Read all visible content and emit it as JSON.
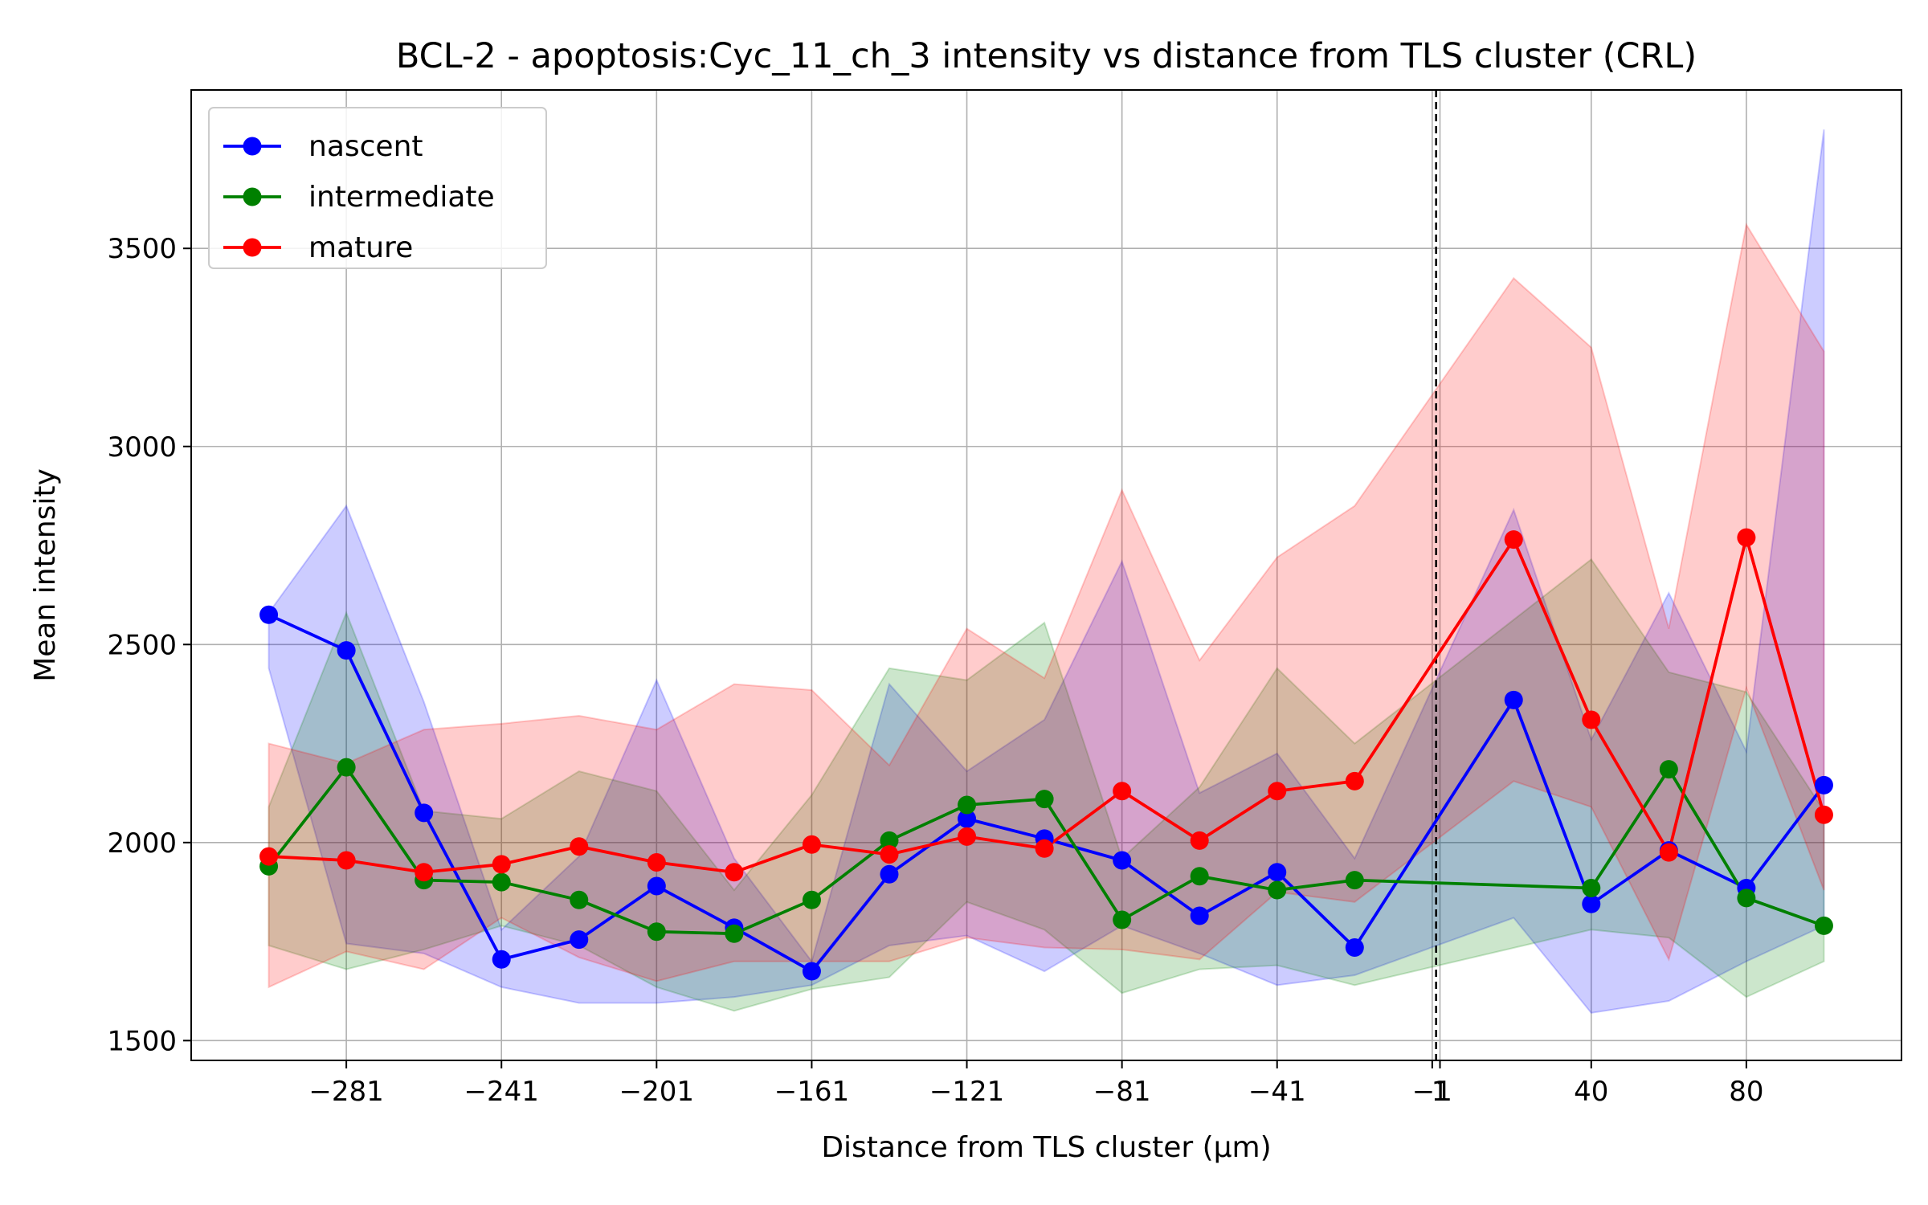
{
  "chart_data": {
    "type": "line",
    "title": "BCL-2 - apoptosis:Cyc_11_ch_3 intensity vs distance from TLS cluster (CRL)",
    "xlabel": "Distance from TLS cluster (μm)",
    "ylabel": "Mean intensity",
    "xlim": [
      -321,
      120
    ],
    "ylim": [
      1450,
      3900
    ],
    "x_ticks": [
      -281,
      -241,
      -201,
      -161,
      -121,
      -81,
      -41,
      -1,
      1,
      40,
      80
    ],
    "x_tick_labels": [
      "−281",
      "−241",
      "−201",
      "−161",
      "−121",
      "−81",
      "−41",
      "−1",
      "1",
      "40",
      "80"
    ],
    "y_ticks": [
      1500,
      2000,
      2500,
      3000,
      3500
    ],
    "y_tick_labels": [
      "1500",
      "2000",
      "2500",
      "3000",
      "3500"
    ],
    "grid": true,
    "legend_position": "top-left",
    "reference_line_x": 0,
    "series": [
      {
        "name": "nascent",
        "color": "#0000ff",
        "x": [
          -301,
          -281,
          -261,
          -241,
          -221,
          -201,
          -181,
          -161,
          -141,
          -121,
          -101,
          -81,
          -61,
          -41,
          -21,
          20,
          40,
          60,
          80,
          100
        ],
        "y": [
          2575,
          2485,
          2075,
          1705,
          1755,
          1890,
          1785,
          1675,
          1920,
          2060,
          2010,
          1955,
          1815,
          1925,
          1735,
          2360,
          1845,
          1980,
          1885,
          2145
        ],
        "lower": [
          2440,
          1745,
          1720,
          1635,
          1595,
          1595,
          1610,
          1640,
          1740,
          1765,
          1675,
          1790,
          1720,
          1640,
          1665,
          1810,
          1570,
          1600,
          1700,
          1790
        ],
        "upper": [
          2580,
          2850,
          2355,
          1780,
          1965,
          2410,
          1960,
          1700,
          2400,
          2180,
          2310,
          2710,
          2125,
          2225,
          1960,
          2840,
          2260,
          2630,
          2230,
          3800
        ]
      },
      {
        "name": "intermediate",
        "color": "#008000",
        "x": [
          -301,
          -281,
          -261,
          -241,
          -221,
          -201,
          -181,
          -161,
          -141,
          -121,
          -101,
          -81,
          -61,
          -41,
          -21,
          40,
          60,
          80,
          100
        ],
        "y": [
          1940,
          2190,
          1905,
          1900,
          1855,
          1775,
          1770,
          1855,
          2005,
          2095,
          2110,
          1805,
          1915,
          1880,
          1905,
          1885,
          2185,
          1860,
          1790
        ],
        "lower": [
          1740,
          1680,
          1730,
          1790,
          1740,
          1635,
          1575,
          1630,
          1660,
          1850,
          1780,
          1620,
          1680,
          1690,
          1640,
          1780,
          1760,
          1610,
          1700
        ],
        "upper": [
          2090,
          2580,
          2080,
          2060,
          2180,
          2130,
          1880,
          2120,
          2440,
          2410,
          2555,
          1960,
          2140,
          2440,
          2250,
          2715,
          2430,
          2380,
          2080
        ]
      },
      {
        "name": "mature",
        "color": "#ff0000",
        "x": [
          -301,
          -281,
          -261,
          -241,
          -221,
          -201,
          -181,
          -161,
          -141,
          -121,
          -101,
          -81,
          -61,
          -41,
          -21,
          20,
          40,
          60,
          80,
          100
        ],
        "y": [
          1965,
          1955,
          1925,
          1945,
          1990,
          1950,
          1925,
          1995,
          1970,
          2015,
          1985,
          2130,
          2005,
          2130,
          2155,
          2765,
          2310,
          1975,
          2770,
          2070
        ],
        "lower": [
          1635,
          1725,
          1680,
          1810,
          1710,
          1650,
          1700,
          1700,
          1700,
          1760,
          1735,
          1730,
          1705,
          1875,
          1850,
          2155,
          2090,
          1705,
          2390,
          1880
        ],
        "upper": [
          2250,
          2200,
          2285,
          2300,
          2320,
          2285,
          2400,
          2385,
          2195,
          2540,
          2415,
          2890,
          2460,
          2720,
          2850,
          3425,
          3250,
          2540,
          3560,
          3240
        ]
      }
    ]
  }
}
